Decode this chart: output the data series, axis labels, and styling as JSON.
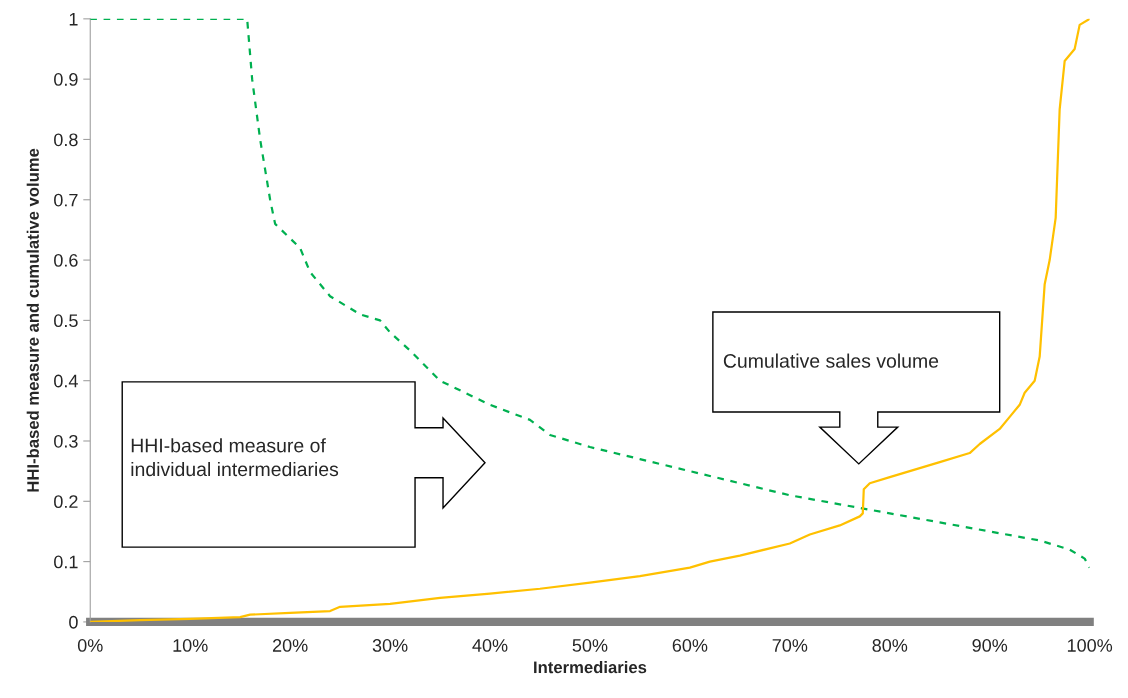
{
  "chart_data": {
    "type": "line",
    "xlabel": "Intermediaries",
    "ylabel": "HHI-based measure and cumulative volume",
    "xlim": [
      0,
      100
    ],
    "ylim": [
      0,
      1
    ],
    "xticks": [
      {
        "value": 0,
        "label": "0%"
      },
      {
        "value": 10,
        "label": "10%"
      },
      {
        "value": 20,
        "label": "20%"
      },
      {
        "value": 30,
        "label": "30%"
      },
      {
        "value": 40,
        "label": "40%"
      },
      {
        "value": 50,
        "label": "50%"
      },
      {
        "value": 60,
        "label": "60%"
      },
      {
        "value": 70,
        "label": "70%"
      },
      {
        "value": 80,
        "label": "80%"
      },
      {
        "value": 90,
        "label": "90%"
      },
      {
        "value": 100,
        "label": "100%"
      }
    ],
    "yticks": [
      0,
      0.1,
      0.2,
      0.3,
      0.4,
      0.5,
      0.6,
      0.7,
      0.8,
      0.9,
      1
    ],
    "grid": false,
    "marker": "none",
    "annotations": [
      "HHI-based measure of\nindividual intermediaries",
      "Cumulative sales volume"
    ],
    "series": [
      {
        "color": "#00b050",
        "line_style": "dashed",
        "x": [
          0,
          15.7,
          16.2,
          17,
          18,
          18.5,
          21,
          22,
          24,
          27,
          29,
          30,
          32,
          35,
          40,
          44,
          46,
          50,
          55,
          60,
          65,
          70,
          75,
          80,
          85,
          90,
          95,
          98,
          99.5,
          100
        ],
        "values": [
          1,
          1,
          0.9,
          0.8,
          0.7,
          0.66,
          0.62,
          0.58,
          0.54,
          0.51,
          0.5,
          0.48,
          0.45,
          0.4,
          0.36,
          0.335,
          0.31,
          0.29,
          0.27,
          0.25,
          0.23,
          0.21,
          0.195,
          0.18,
          0.165,
          0.15,
          0.135,
          0.12,
          0.105,
          0.09
        ]
      },
      {
        "color": "#ffc000",
        "line_style": "solid",
        "x": [
          0,
          5,
          10,
          15,
          16,
          20,
          24,
          25,
          30,
          35,
          40,
          45,
          50,
          55,
          60,
          62,
          65,
          70,
          72,
          75,
          77,
          77.3,
          77.4,
          78,
          80,
          85,
          88,
          89,
          91,
          92,
          93,
          93.5,
          94.5,
          95,
          95.5,
          96,
          96.6,
          97,
          97.5,
          98,
          98.5,
          99,
          100
        ],
        "values": [
          0,
          0.003,
          0.005,
          0.008,
          0.012,
          0.015,
          0.018,
          0.025,
          0.03,
          0.04,
          0.047,
          0.055,
          0.065,
          0.076,
          0.09,
          0.1,
          0.11,
          0.13,
          0.145,
          0.16,
          0.175,
          0.18,
          0.22,
          0.23,
          0.24,
          0.265,
          0.28,
          0.295,
          0.32,
          0.34,
          0.36,
          0.38,
          0.4,
          0.44,
          0.56,
          0.6,
          0.67,
          0.85,
          0.93,
          0.94,
          0.95,
          0.99,
          1.0
        ]
      }
    ]
  }
}
